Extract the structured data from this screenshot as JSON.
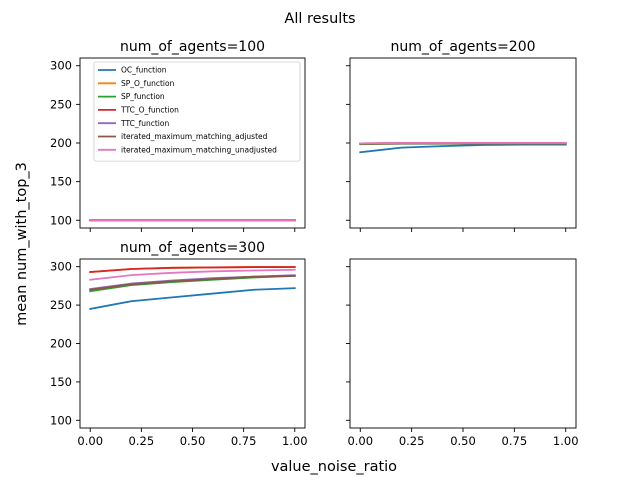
{
  "figure": {
    "suptitle": "All results",
    "xlabel": "value_noise_ratio",
    "ylabel": "mean num_with_top_3"
  },
  "chart_data": [
    {
      "type": "line",
      "title": "num_of_agents=100",
      "xlim": [
        -0.05,
        1.05
      ],
      "ylim": [
        90,
        310
      ],
      "xticks": [
        0.0,
        0.25,
        0.5,
        0.75,
        1.0
      ],
      "xtick_labels_visible": false,
      "yticks": [
        100,
        150,
        200,
        250,
        300
      ],
      "ytick_labels_visible": true,
      "legend": "top-left",
      "series": [
        {
          "name": "OC_function",
          "color": "#1f77b4",
          "x": [
            0.0,
            0.2,
            0.4,
            0.6,
            0.8,
            1.0
          ],
          "y": [
            100,
            100,
            100,
            100,
            100,
            100
          ]
        },
        {
          "name": "SP_O_function",
          "color": "#ff7f0e",
          "x": [
            0.0,
            0.2,
            0.4,
            0.6,
            0.8,
            1.0
          ],
          "y": [
            100,
            100,
            100,
            100,
            100,
            100
          ]
        },
        {
          "name": "SP_function",
          "color": "#2ca02c",
          "x": [
            0.0,
            0.2,
            0.4,
            0.6,
            0.8,
            1.0
          ],
          "y": [
            100,
            100,
            100,
            100,
            100,
            100
          ]
        },
        {
          "name": "TTC_O_function",
          "color": "#d62728",
          "x": [
            0.0,
            0.2,
            0.4,
            0.6,
            0.8,
            1.0
          ],
          "y": [
            100,
            100,
            100,
            100,
            100,
            100
          ]
        },
        {
          "name": "TTC_function",
          "color": "#9467bd",
          "x": [
            0.0,
            0.2,
            0.4,
            0.6,
            0.8,
            1.0
          ],
          "y": [
            100,
            100,
            100,
            100,
            100,
            100
          ]
        },
        {
          "name": "iterated_maximum_matching_adjusted",
          "color": "#8c564b",
          "x": [
            0.0,
            0.2,
            0.4,
            0.6,
            0.8,
            1.0
          ],
          "y": [
            100,
            100,
            100,
            100,
            100,
            100
          ]
        },
        {
          "name": "iterated_maximum_matching_unadjusted",
          "color": "#e377c2",
          "x": [
            0.0,
            0.2,
            0.4,
            0.6,
            0.8,
            1.0
          ],
          "y": [
            100,
            100,
            100,
            100,
            100,
            100
          ]
        }
      ]
    },
    {
      "type": "line",
      "title": "num_of_agents=200",
      "xlim": [
        -0.05,
        1.05
      ],
      "ylim": [
        90,
        310
      ],
      "xticks": [
        0.0,
        0.25,
        0.5,
        0.75,
        1.0
      ],
      "xtick_labels_visible": false,
      "yticks": [
        100,
        150,
        200,
        250,
        300
      ],
      "ytick_labels_visible": false,
      "series": [
        {
          "name": "OC_function",
          "color": "#1f77b4",
          "x": [
            0.0,
            0.2,
            0.4,
            0.6,
            0.8,
            1.0
          ],
          "y": [
            188,
            194,
            196,
            197.5,
            198,
            198
          ]
        },
        {
          "name": "SP_O_function",
          "color": "#ff7f0e",
          "x": [
            0.0,
            0.2,
            0.4,
            0.6,
            0.8,
            1.0
          ],
          "y": [
            199,
            199.5,
            199.5,
            199.5,
            199.5,
            199.5
          ]
        },
        {
          "name": "SP_function",
          "color": "#2ca02c",
          "x": [
            0.0,
            0.2,
            0.4,
            0.6,
            0.8,
            1.0
          ],
          "y": [
            198.5,
            199,
            199,
            199,
            199,
            199
          ]
        },
        {
          "name": "TTC_O_function",
          "color": "#d62728",
          "x": [
            0.0,
            0.2,
            0.4,
            0.6,
            0.8,
            1.0
          ],
          "y": [
            199.5,
            200,
            200,
            200,
            200,
            200
          ]
        },
        {
          "name": "TTC_function",
          "color": "#9467bd",
          "x": [
            0.0,
            0.2,
            0.4,
            0.6,
            0.8,
            1.0
          ],
          "y": [
            199,
            199.5,
            199.5,
            199.5,
            199.5,
            199.5
          ]
        },
        {
          "name": "iterated_maximum_matching_adjusted",
          "color": "#8c564b",
          "x": [
            0.0,
            0.2,
            0.4,
            0.6,
            0.8,
            1.0
          ],
          "y": [
            199,
            199.5,
            199.5,
            199.5,
            199.5,
            199.5
          ]
        },
        {
          "name": "iterated_maximum_matching_unadjusted",
          "color": "#e377c2",
          "x": [
            0.0,
            0.2,
            0.4,
            0.6,
            0.8,
            1.0
          ],
          "y": [
            199.5,
            200,
            200,
            200,
            200,
            200
          ]
        }
      ]
    },
    {
      "type": "line",
      "title": "num_of_agents=300",
      "xlim": [
        -0.05,
        1.05
      ],
      "ylim": [
        90,
        310
      ],
      "xticks": [
        0.0,
        0.25,
        0.5,
        0.75,
        1.0
      ],
      "xtick_labels_visible": true,
      "yticks": [
        100,
        150,
        200,
        250,
        300
      ],
      "ytick_labels_visible": true,
      "series": [
        {
          "name": "OC_function",
          "color": "#1f77b4",
          "x": [
            0.0,
            0.2,
            0.4,
            0.6,
            0.8,
            1.0
          ],
          "y": [
            245,
            255,
            260,
            265,
            270,
            272
          ]
        },
        {
          "name": "SP_O_function",
          "color": "#ff7f0e",
          "x": [
            0.0,
            0.2,
            0.4,
            0.6,
            0.8,
            1.0
          ],
          "y": [
            293,
            297,
            298.5,
            299,
            299.5,
            299.5
          ]
        },
        {
          "name": "SP_function",
          "color": "#2ca02c",
          "x": [
            0.0,
            0.2,
            0.4,
            0.6,
            0.8,
            1.0
          ],
          "y": [
            268,
            276,
            280,
            283,
            286,
            288
          ]
        },
        {
          "name": "TTC_O_function",
          "color": "#d62728",
          "x": [
            0.0,
            0.2,
            0.4,
            0.6,
            0.8,
            1.0
          ],
          "y": [
            293,
            297,
            298.5,
            299,
            299.5,
            299.5
          ]
        },
        {
          "name": "TTC_function",
          "color": "#9467bd",
          "x": [
            0.0,
            0.2,
            0.4,
            0.6,
            0.8,
            1.0
          ],
          "y": [
            271,
            278,
            282,
            285,
            287,
            289
          ]
        },
        {
          "name": "iterated_maximum_matching_adjusted",
          "color": "#8c564b",
          "x": [
            0.0,
            0.2,
            0.4,
            0.6,
            0.8,
            1.0
          ],
          "y": [
            270,
            277,
            281,
            284,
            287,
            288
          ]
        },
        {
          "name": "iterated_maximum_matching_unadjusted",
          "color": "#e377c2",
          "x": [
            0.0,
            0.2,
            0.4,
            0.6,
            0.8,
            1.0
          ],
          "y": [
            283,
            289,
            292,
            294,
            295,
            296
          ]
        }
      ]
    },
    {
      "type": "line",
      "title": "",
      "xlim": [
        -0.05,
        1.05
      ],
      "ylim": [
        90,
        310
      ],
      "xticks": [
        0.0,
        0.25,
        0.5,
        0.75,
        1.0
      ],
      "xtick_labels_visible": true,
      "yticks": [
        100,
        150,
        200,
        250,
        300
      ],
      "ytick_labels_visible": false,
      "series": []
    }
  ]
}
